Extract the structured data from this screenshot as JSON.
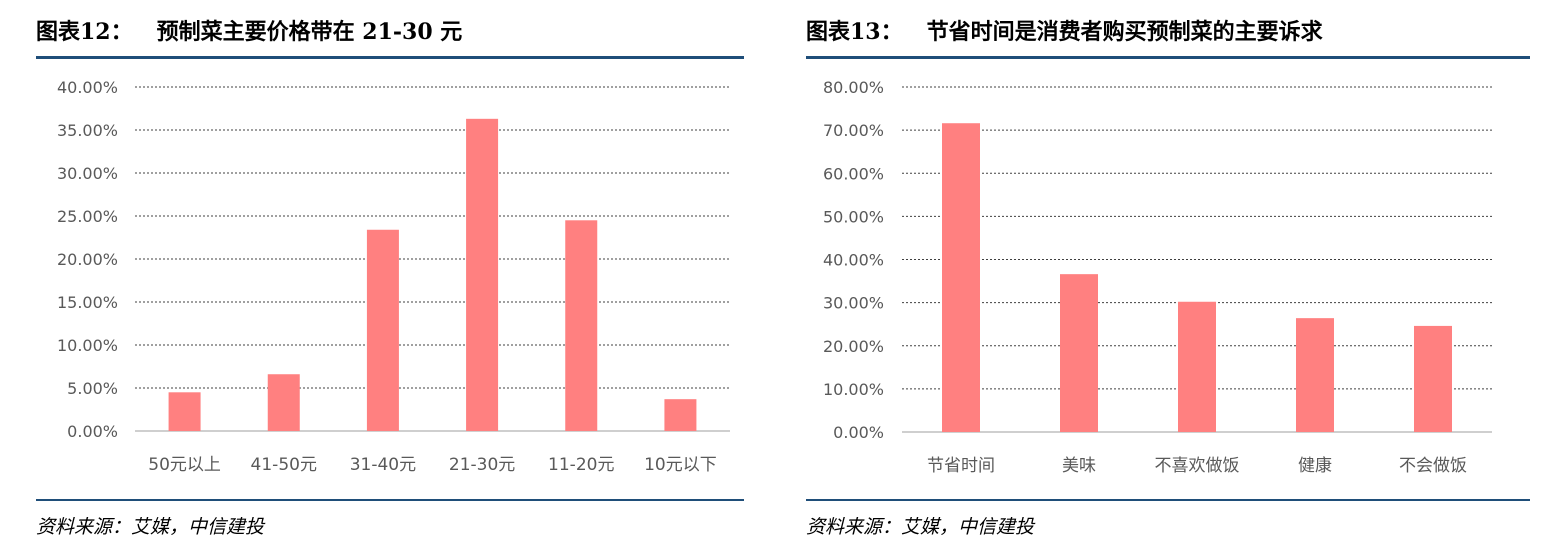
{
  "figures": [
    {
      "number": "图表12：",
      "title": "预制菜主要价格带在 21-30 元",
      "source": "资料来源：艾媒，中信建投",
      "chart_data": {
        "type": "bar",
        "categories": [
          "50元以上",
          "41-50元",
          "31-40元",
          "21-30元",
          "11-20元",
          "10元以下"
        ],
        "values": [
          4.5,
          6.6,
          23.4,
          36.3,
          24.5,
          3.7
        ],
        "yticks": [
          "0.00%",
          "5.00%",
          "10.00%",
          "15.00%",
          "20.00%",
          "25.00%",
          "30.00%",
          "35.00%",
          "40.00%"
        ],
        "ylim": [
          0,
          40
        ],
        "grid": true,
        "bar_color": "#ff8080"
      }
    },
    {
      "number": "图表13：",
      "title": "节省时间是消费者购买预制菜的主要诉求",
      "source": "资料来源：艾媒，中信建投",
      "chart_data": {
        "type": "bar",
        "categories": [
          "节省时间",
          "美味",
          "不喜欢做饭",
          "健康",
          "不会做饭"
        ],
        "values": [
          71.6,
          36.6,
          30.2,
          26.4,
          24.6
        ],
        "yticks": [
          "0.00%",
          "10.00%",
          "20.00%",
          "30.00%",
          "40.00%",
          "50.00%",
          "60.00%",
          "70.00%",
          "80.00%"
        ],
        "ylim": [
          0,
          80
        ],
        "grid": true,
        "bar_color": "#ff8080"
      }
    }
  ]
}
